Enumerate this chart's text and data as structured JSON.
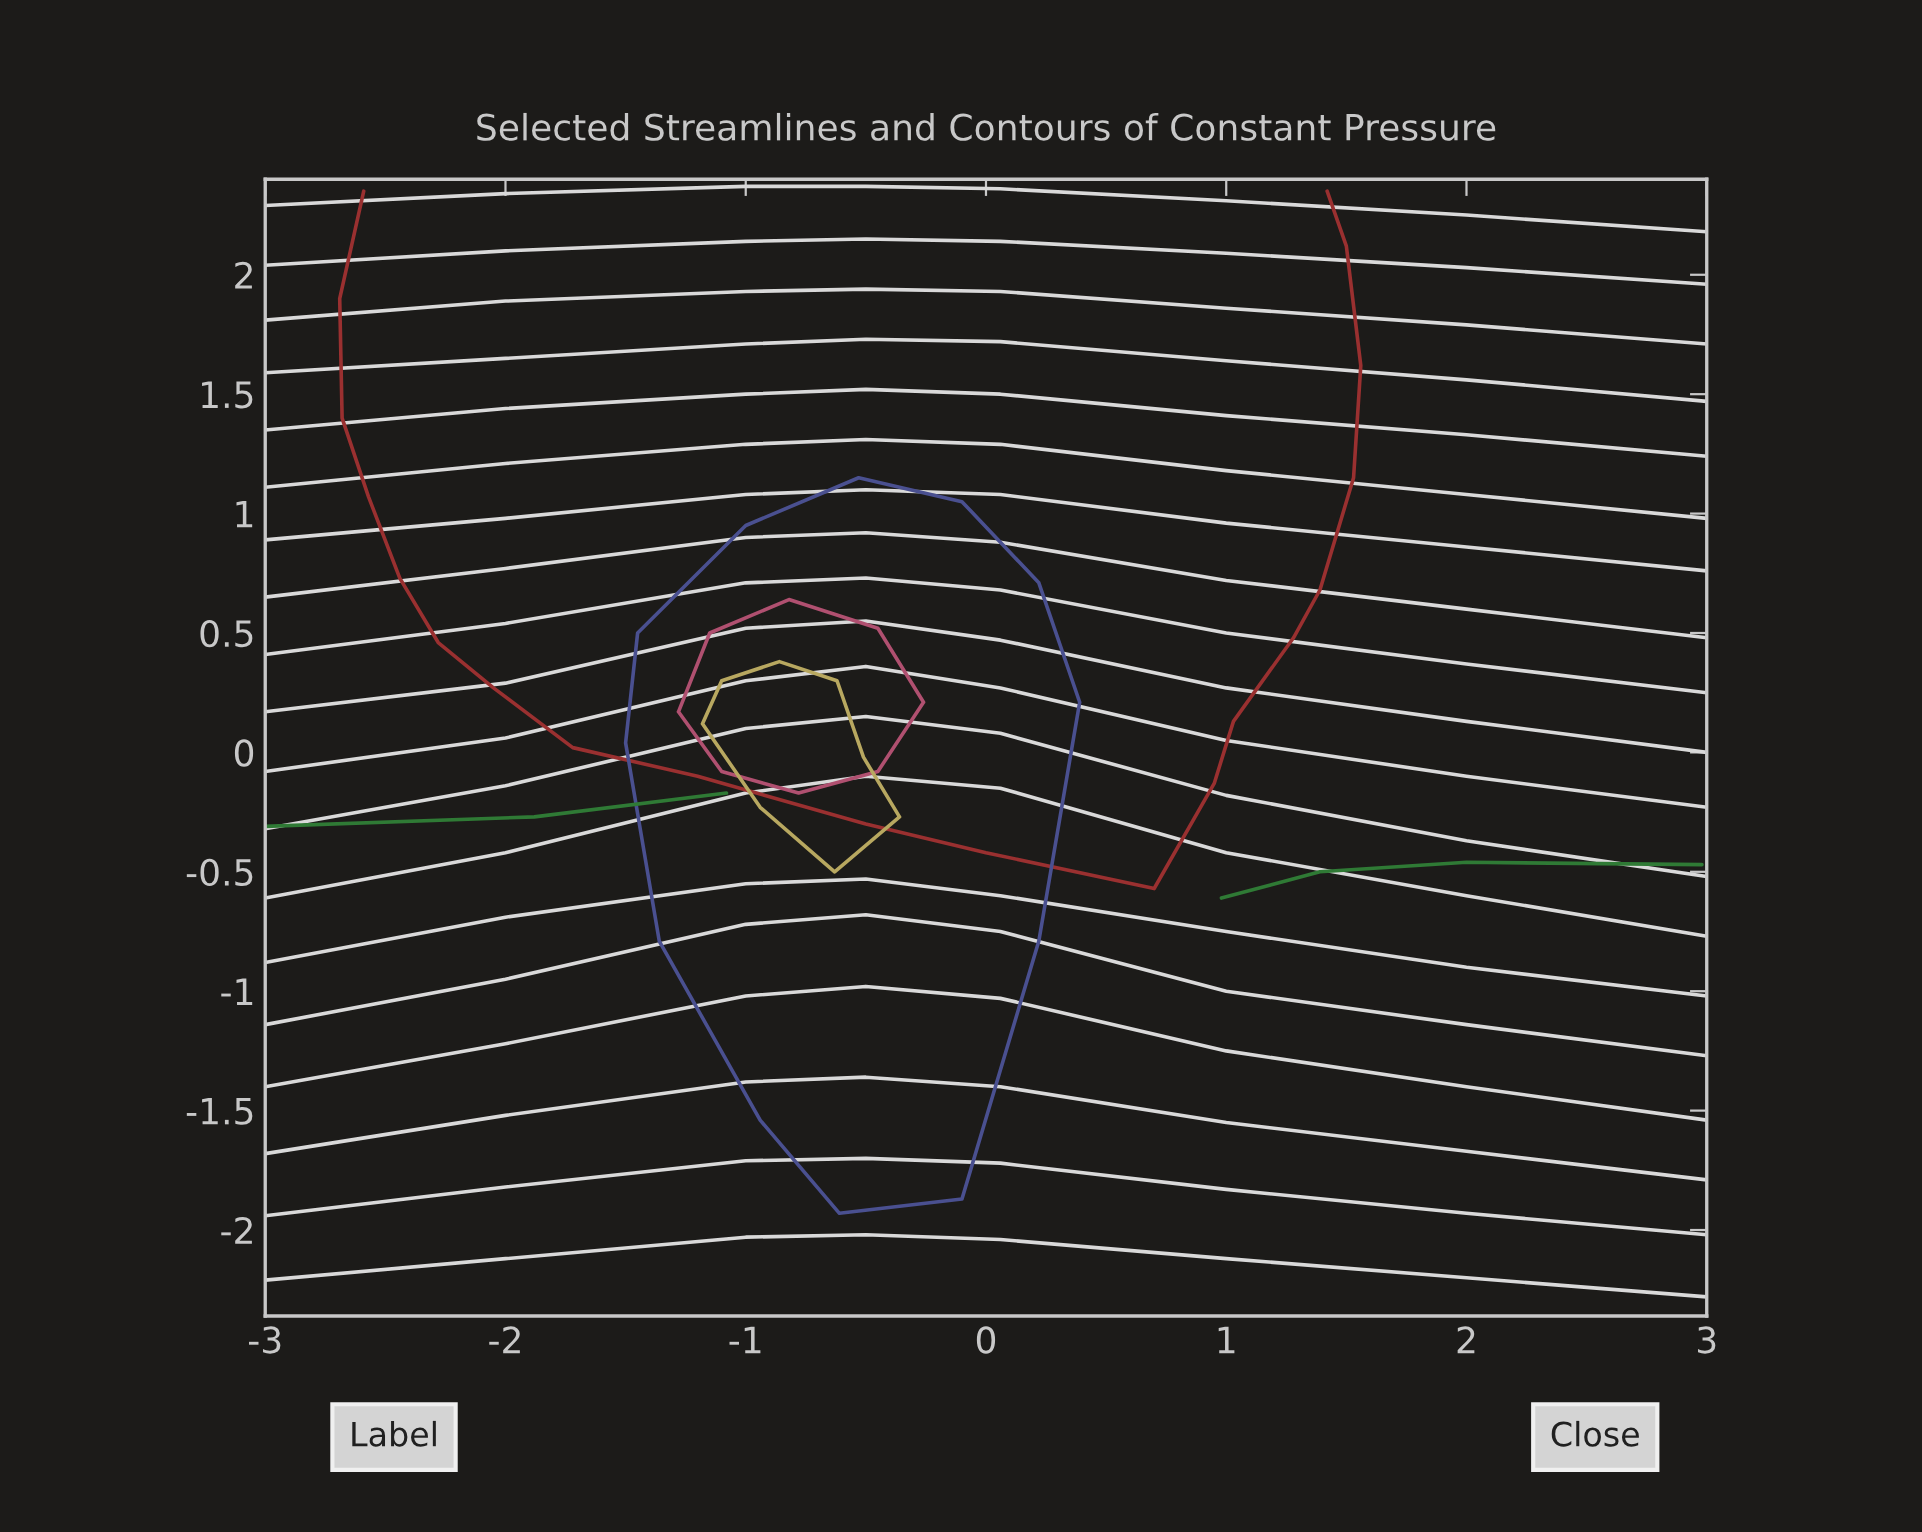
{
  "chart_data": {
    "type": "line",
    "title": "Selected Streamlines and Contours of Constant Pressure",
    "x": [
      -3,
      -2,
      -1,
      -0.5,
      0.06,
      1,
      2,
      3
    ],
    "xlim": [
      -3,
      3
    ],
    "ylim": [
      -2.36,
      2.4
    ],
    "xticks": [
      -3,
      -2,
      -1,
      0,
      1,
      2,
      3
    ],
    "yticks": [
      -2,
      -1.5,
      -1,
      -0.5,
      0,
      0.5,
      1,
      1.5,
      2
    ],
    "grid": false,
    "line_style": "solid",
    "marker": "none",
    "annotations": [
      "Label",
      "Close"
    ],
    "series": [
      {
        "color": "#d9d9d9",
        "values": [
          2.29,
          2.34,
          2.37,
          2.37,
          2.36,
          2.31,
          2.25,
          2.18
        ]
      },
      {
        "color": "#d9d9d9",
        "values": [
          2.04,
          2.1,
          2.14,
          2.15,
          2.14,
          2.09,
          2.03,
          1.96
        ]
      },
      {
        "color": "#d9d9d9",
        "values": [
          1.81,
          1.89,
          1.93,
          1.94,
          1.93,
          1.86,
          1.79,
          1.71
        ]
      },
      {
        "color": "#d9d9d9",
        "values": [
          1.59,
          1.65,
          1.71,
          1.73,
          1.72,
          1.64,
          1.56,
          1.47
        ]
      },
      {
        "color": "#d9d9d9",
        "values": [
          1.35,
          1.44,
          1.5,
          1.52,
          1.5,
          1.41,
          1.33,
          1.24
        ]
      },
      {
        "color": "#d9d9d9",
        "values": [
          1.11,
          1.21,
          1.29,
          1.31,
          1.29,
          1.18,
          1.08,
          0.98
        ]
      },
      {
        "color": "#d9d9d9",
        "values": [
          0.89,
          0.98,
          1.08,
          1.1,
          1.08,
          0.96,
          0.86,
          0.76
        ]
      },
      {
        "color": "#d9d9d9",
        "values": [
          0.65,
          0.77,
          0.9,
          0.92,
          0.88,
          0.72,
          0.6,
          0.48
        ]
      },
      {
        "color": "#d9d9d9",
        "values": [
          0.41,
          0.54,
          0.71,
          0.73,
          0.68,
          0.5,
          0.37,
          0.25
        ]
      },
      {
        "color": "#d9d9d9",
        "values": [
          0.17,
          0.29,
          0.52,
          0.55,
          0.47,
          0.27,
          0.13,
          0.0
        ]
      },
      {
        "color": "#d9d9d9",
        "values": [
          -0.08,
          0.06,
          0.3,
          0.36,
          0.27,
          0.05,
          -0.1,
          -0.23
        ]
      },
      {
        "color": "#d9d9d9",
        "values": [
          -0.32,
          -0.14,
          0.1,
          0.15,
          0.08,
          -0.18,
          -0.37,
          -0.52
        ]
      },
      {
        "color": "#d9d9d9",
        "values": [
          -0.61,
          -0.42,
          -0.17,
          -0.1,
          -0.15,
          -0.42,
          -0.6,
          -0.77
        ]
      },
      {
        "color": "#d9d9d9",
        "values": [
          -0.88,
          -0.69,
          -0.55,
          -0.53,
          -0.6,
          -0.75,
          -0.9,
          -1.02
        ]
      },
      {
        "color": "#d9d9d9",
        "values": [
          -1.14,
          -0.95,
          -0.72,
          -0.68,
          -0.75,
          -1.0,
          -1.14,
          -1.27
        ]
      },
      {
        "color": "#d9d9d9",
        "values": [
          -1.4,
          -1.22,
          -1.02,
          -0.98,
          -1.03,
          -1.25,
          -1.4,
          -1.54
        ]
      },
      {
        "color": "#d9d9d9",
        "values": [
          -1.68,
          -1.52,
          -1.38,
          -1.36,
          -1.4,
          -1.55,
          -1.67,
          -1.79
        ]
      },
      {
        "color": "#d9d9d9",
        "values": [
          -1.94,
          -1.82,
          -1.71,
          -1.7,
          -1.72,
          -1.83,
          -1.93,
          -2.02
        ]
      },
      {
        "color": "#d9d9d9",
        "values": [
          -2.21,
          -2.12,
          -2.03,
          -2.02,
          -2.04,
          -2.12,
          -2.2,
          -2.28
        ]
      },
      {
        "color": "#9a3030",
        "x": [
          -2.59,
          -2.69,
          null,
          -2.69,
          -2.68,
          -2.57,
          -2.44,
          -2.28,
          -2.05,
          -1.72,
          -1.2,
          -0.5,
          0.0,
          0.7,
          null,
          0.7,
          0.95,
          1.03,
          1.28,
          1.39,
          1.53,
          1.56,
          null,
          1.56,
          1.5,
          1.42
        ],
        "values": [
          2.35,
          1.9,
          null,
          1.9,
          1.4,
          1.07,
          0.73,
          0.46,
          0.27,
          0.02,
          -0.1,
          -0.3,
          -0.42,
          -0.57,
          null,
          -0.57,
          -0.13,
          0.13,
          0.48,
          0.68,
          1.15,
          1.62,
          null,
          1.62,
          2.12,
          2.35
        ]
      },
      {
        "color": "#4a5090",
        "x": [
          -1.5,
          -1.45,
          -1.0,
          -0.53,
          -0.1,
          0.22,
          0.39,
          null,
          -1.5,
          -1.36,
          -0.94,
          -0.61,
          -0.1,
          0.22,
          0.39
        ],
        "values": [
          0.04,
          0.5,
          0.95,
          1.15,
          1.05,
          0.71,
          0.21,
          null,
          0.04,
          -0.79,
          -1.54,
          -1.93,
          -1.87,
          -0.79,
          0.21
        ]
      },
      {
        "color": "#b05070",
        "x": [
          -1.28,
          -1.15,
          -0.82,
          -0.45,
          -0.26,
          null,
          -1.28,
          -1.1,
          -0.78,
          -0.45,
          -0.26
        ],
        "values": [
          0.17,
          0.5,
          0.64,
          0.52,
          0.21,
          null,
          0.17,
          -0.08,
          -0.17,
          -0.08,
          0.21
        ]
      },
      {
        "color": "#b8a860",
        "x": [
          -1.18,
          -1.1,
          -0.86,
          -0.62,
          -0.51,
          -0.36,
          null,
          -1.18,
          -0.94,
          -0.63,
          -0.36
        ],
        "values": [
          0.12,
          0.3,
          0.38,
          0.3,
          -0.02,
          -0.27,
          null,
          0.12,
          -0.23,
          -0.5,
          -0.27
        ]
      },
      {
        "color": "#2f7a35",
        "x": [
          -3,
          -1.88,
          -1.08,
          null,
          0.98,
          1.39,
          2.0,
          2.98
        ],
        "values": [
          -0.31,
          -0.27,
          -0.17,
          null,
          -0.61,
          -0.5,
          -0.46,
          -0.47
        ]
      }
    ]
  }
}
